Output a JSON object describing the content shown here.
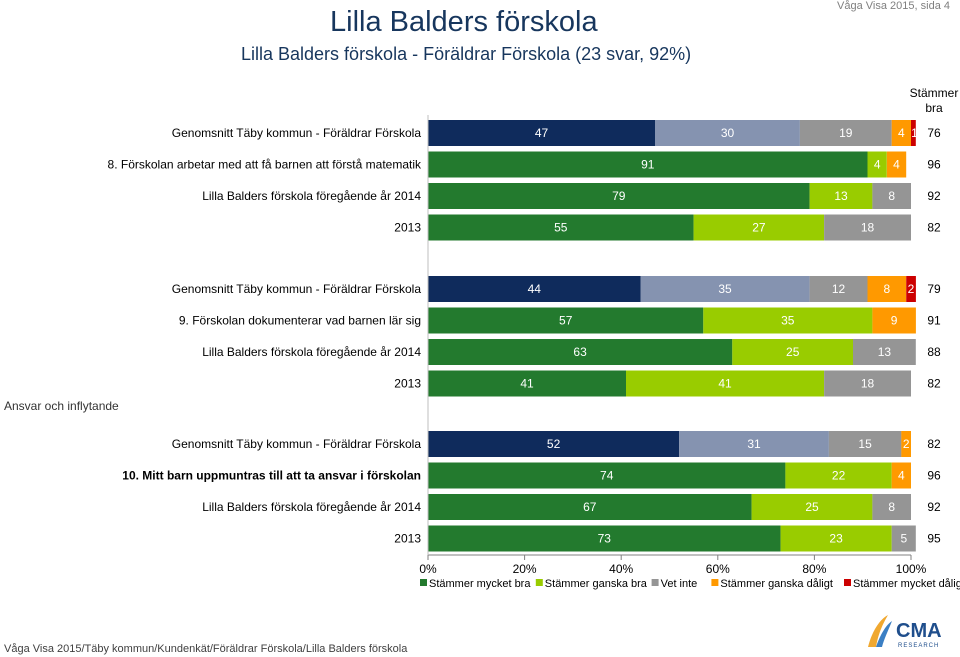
{
  "header": {
    "title": "Lilla Balders förskola",
    "subtitle": "Lilla Balders förskola - Föräldrar Förskola (23 svar, 92%)",
    "page_ref": "Våga Visa 2015, sida 4"
  },
  "footer": {
    "text": "Våga Visa 2015/Täby kommun/Kundenkät/Föräldrar Förskola/Lilla Balders förskola"
  },
  "logo": {
    "text": "CMA",
    "subtext": "RESEARCH"
  },
  "colors": {
    "avg_dark": "#0f2b5c",
    "avg_grey": "#8593b0",
    "mycket_bra": "#237a2e",
    "ganska_bra": "#99cc00",
    "vet_inte": "#959595",
    "ganska_daligt": "#ff9900",
    "mycket_daligt": "#cc0000"
  },
  "chart_data": {
    "type": "bar",
    "orientation": "horizontal",
    "stacked": true,
    "xlim": [
      0,
      100
    ],
    "x_ticks": [
      "0%",
      "20%",
      "40%",
      "60%",
      "80%",
      "100%"
    ],
    "right_column_header": "Stämmer bra",
    "side_label": "Ansvar och inflytande",
    "legend": [
      "Stämmer mycket bra",
      "Stämmer ganska bra",
      "Vet inte",
      "Stämmer ganska dåligt",
      "Stämmer mycket dåligt"
    ],
    "groups": [
      {
        "rows": [
          {
            "label": "Genomsnitt Täby kommun - Föräldrar Förskola",
            "bold": false,
            "average": true,
            "values": [
              47,
              30,
              19,
              4,
              1
            ],
            "stammer_bra": 76
          },
          {
            "label": "8. Förskolan arbetar med att få barnen att förstå matematik",
            "bold": false,
            "average": false,
            "values": [
              91,
              4,
              0,
              4,
              0
            ],
            "stammer_bra": 96
          },
          {
            "label": "Lilla Balders förskola föregående år 2014",
            "bold": false,
            "average": false,
            "values": [
              79,
              13,
              8,
              0,
              0
            ],
            "stammer_bra": 92
          },
          {
            "label": "2013",
            "bold": false,
            "average": false,
            "values": [
              55,
              27,
              18,
              0,
              0
            ],
            "stammer_bra": 82
          }
        ]
      },
      {
        "rows": [
          {
            "label": "Genomsnitt Täby kommun - Föräldrar Förskola",
            "bold": false,
            "average": true,
            "values": [
              44,
              35,
              12,
              8,
              2
            ],
            "stammer_bra": 79
          },
          {
            "label": "9. Förskolan dokumenterar vad barnen lär sig",
            "bold": false,
            "average": false,
            "values": [
              57,
              35,
              0,
              9,
              0
            ],
            "stammer_bra": 91
          },
          {
            "label": "Lilla Balders förskola föregående år 2014",
            "bold": false,
            "average": false,
            "values": [
              63,
              25,
              13,
              0,
              0
            ],
            "stammer_bra": 88
          },
          {
            "label": "2013",
            "bold": false,
            "average": false,
            "values": [
              41,
              41,
              18,
              0,
              0
            ],
            "stammer_bra": 82
          }
        ]
      },
      {
        "rows": [
          {
            "label": "Genomsnitt Täby kommun - Föräldrar Förskola",
            "bold": false,
            "average": true,
            "values": [
              52,
              31,
              15,
              2,
              0
            ],
            "stammer_bra": 82
          },
          {
            "label": "10. Mitt barn uppmuntras till att ta ansvar i förskolan",
            "bold": true,
            "average": false,
            "values": [
              74,
              22,
              0,
              4,
              0
            ],
            "stammer_bra": 96
          },
          {
            "label": "Lilla Balders förskola föregående år 2014",
            "bold": false,
            "average": false,
            "values": [
              67,
              25,
              8,
              0,
              0
            ],
            "stammer_bra": 92
          },
          {
            "label": "2013",
            "bold": false,
            "average": false,
            "values": [
              73,
              23,
              5,
              0,
              0
            ],
            "stammer_bra": 95
          }
        ]
      }
    ]
  }
}
